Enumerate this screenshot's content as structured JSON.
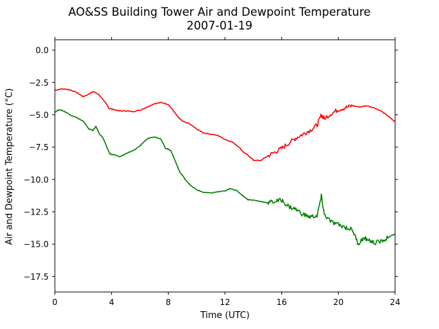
{
  "chart_data": {
    "type": "line",
    "title_lines": [
      "AO&SS Building Tower Air and Dewpoint Temperature",
      "2007-01-19"
    ],
    "xlabel": "Time (UTC)",
    "ylabel": "Air and Dewpoint Temperature (°C)",
    "xlim": [
      0,
      24
    ],
    "ylim": [
      -18.7,
      0.8
    ],
    "xticks": [
      0,
      4,
      8,
      12,
      16,
      20,
      24
    ],
    "xtick_labels": [
      "0",
      "4",
      "8",
      "12",
      "16",
      "20",
      "24"
    ],
    "yticks": [
      0.0,
      -2.5,
      -5.0,
      -7.5,
      -10.0,
      -12.5,
      -15.0,
      -17.5
    ],
    "ytick_labels": [
      "0.0",
      "−2.5",
      "−5.0",
      "−7.5",
      "−10.0",
      "−12.5",
      "−15.0",
      "−17.5"
    ],
    "grid": false,
    "series": [
      {
        "color": "#ff0000",
        "x": [
          0,
          0.5,
          1.0,
          1.5,
          2.0,
          2.4,
          2.7,
          3.0,
          3.3,
          3.6,
          3.8,
          4.0,
          4.5,
          5.0,
          5.5,
          6.0,
          6.5,
          7.0,
          7.5,
          8.0,
          8.3,
          8.7,
          9.0,
          9.5,
          10.0,
          10.5,
          11.0,
          11.5,
          12.0,
          12.5,
          13.0,
          13.3,
          13.6,
          14.0,
          14.5,
          15.0,
          15.5,
          16.0,
          16.5,
          17.0,
          17.5,
          18.0,
          18.5,
          18.8,
          19.0,
          19.5,
          20.0,
          20.5,
          21.0,
          21.5,
          22.0,
          22.5,
          23.0,
          23.5,
          24.0
        ],
        "y": [
          -3.1,
          -3.0,
          -3.05,
          -3.25,
          -3.6,
          -3.4,
          -3.2,
          -3.35,
          -3.7,
          -4.1,
          -4.5,
          -4.55,
          -4.7,
          -4.7,
          -4.75,
          -4.65,
          -4.4,
          -4.15,
          -4.05,
          -4.2,
          -4.6,
          -5.2,
          -5.5,
          -5.7,
          -6.1,
          -6.4,
          -6.5,
          -6.6,
          -6.9,
          -7.1,
          -7.5,
          -7.9,
          -8.1,
          -8.5,
          -8.55,
          -8.2,
          -7.9,
          -7.6,
          -7.2,
          -6.8,
          -6.5,
          -6.2,
          -5.8,
          -5.0,
          -5.3,
          -4.9,
          -4.6,
          -4.45,
          -4.3,
          -4.4,
          -4.3,
          -4.45,
          -4.7,
          -5.1,
          -5.55
        ]
      },
      {
        "color": "#008000",
        "x": [
          0,
          0.3,
          0.6,
          1.0,
          1.5,
          2.0,
          2.4,
          2.7,
          2.9,
          3.1,
          3.4,
          3.7,
          3.9,
          4.2,
          4.6,
          5.0,
          5.5,
          6.0,
          6.3,
          6.6,
          7.0,
          7.5,
          7.8,
          8.0,
          8.2,
          8.5,
          8.8,
          9.2,
          9.6,
          10.0,
          10.5,
          11.0,
          11.5,
          12.0,
          12.4,
          12.8,
          13.2,
          13.6,
          14.0,
          14.5,
          15.0,
          15.5,
          16.0,
          16.5,
          17.0,
          17.5,
          18.0,
          18.5,
          18.8,
          19.0,
          19.5,
          20.0,
          20.5,
          21.0,
          21.4,
          21.7,
          22.0,
          22.5,
          23.0,
          23.5,
          24.0
        ],
        "y": [
          -4.8,
          -4.6,
          -4.7,
          -4.95,
          -5.2,
          -5.5,
          -6.1,
          -6.2,
          -5.9,
          -6.4,
          -6.8,
          -7.6,
          -8.05,
          -8.1,
          -8.25,
          -8.0,
          -7.8,
          -7.4,
          -7.05,
          -6.8,
          -6.7,
          -6.9,
          -7.6,
          -7.65,
          -7.8,
          -8.6,
          -9.4,
          -10.0,
          -10.5,
          -10.8,
          -11.0,
          -11.05,
          -10.95,
          -10.9,
          -10.7,
          -10.85,
          -11.2,
          -11.55,
          -11.6,
          -11.7,
          -11.8,
          -11.7,
          -11.6,
          -12.1,
          -12.3,
          -12.7,
          -12.9,
          -12.8,
          -11.3,
          -12.7,
          -13.3,
          -13.5,
          -13.7,
          -13.9,
          -15.0,
          -14.6,
          -14.6,
          -14.9,
          -14.8,
          -14.5,
          -14.2
        ]
      }
    ]
  }
}
